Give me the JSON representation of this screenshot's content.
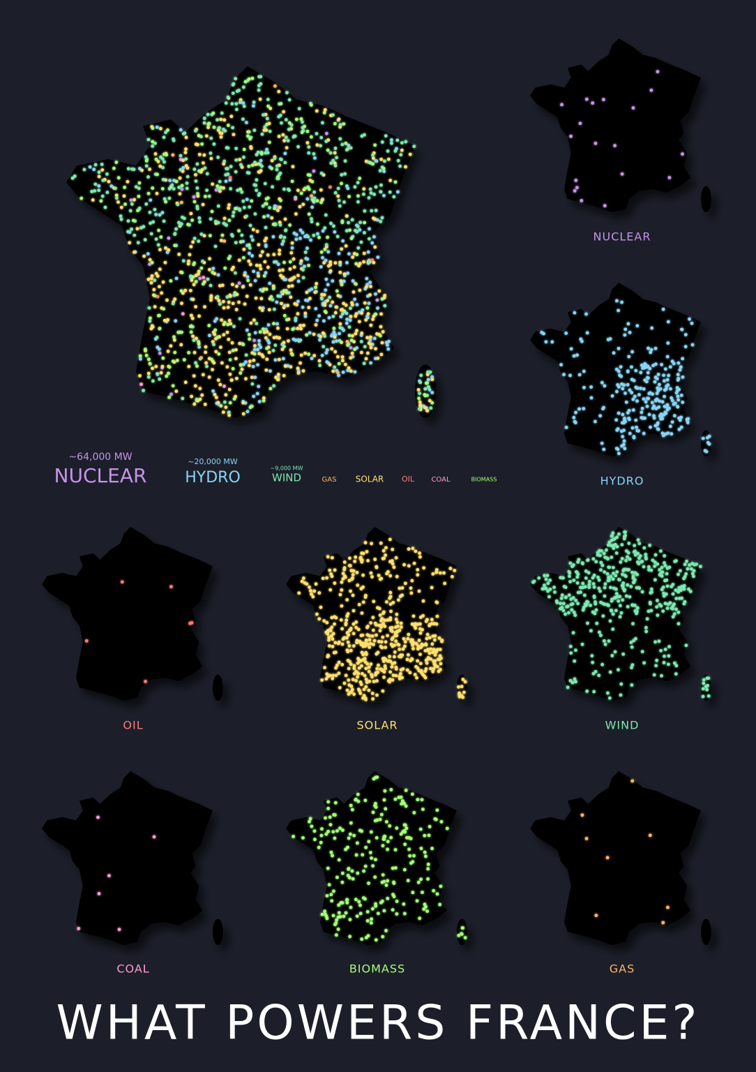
{
  "title": "WHAT POWERS FRANCE?",
  "legend": [
    {
      "label": "NUCLEAR",
      "capacity": "~64,000 MW",
      "color": "#c792ea"
    },
    {
      "label": "HYDRO",
      "capacity": "~20,000 MW",
      "color": "#89d4f5"
    },
    {
      "label": "WIND",
      "capacity": "~9,000 MW",
      "color": "#7ee8b0"
    },
    {
      "label": "GAS",
      "color": "#ffb464"
    },
    {
      "label": "SOLAR",
      "color": "#ffe070"
    },
    {
      "label": "OIL",
      "color": "#ff7a7a"
    },
    {
      "label": "COAL",
      "color": "#ff9ad6"
    },
    {
      "label": "BIOMASS",
      "color": "#a6ff7a"
    }
  ],
  "panels": [
    {
      "label": "NUCLEAR",
      "color": "#c792ea"
    },
    {
      "label": "HYDRO",
      "color": "#89d4f5"
    },
    {
      "label": "OIL",
      "color": "#ff7a7a"
    },
    {
      "label": "SOLAR",
      "color": "#ffe070"
    },
    {
      "label": "WIND",
      "color": "#7ee8b0"
    },
    {
      "label": "COAL",
      "color": "#ff9ad6"
    },
    {
      "label": "BIOMASS",
      "color": "#a6ff7a"
    },
    {
      "label": "GAS",
      "color": "#ffb464"
    }
  ]
}
